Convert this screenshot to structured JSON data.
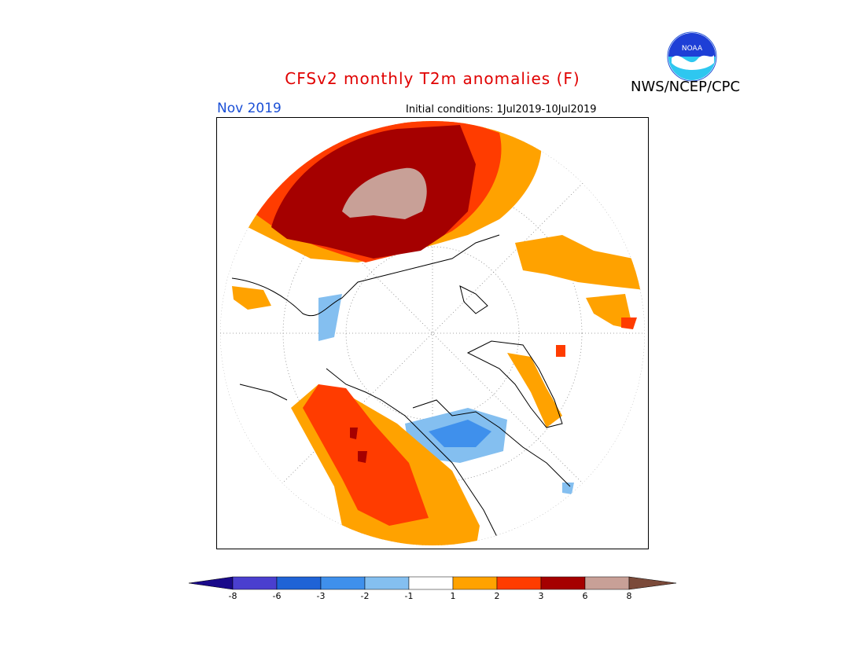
{
  "header": {
    "title": "CFSv2 monthly T2m anomalies (F)",
    "agency": "NWS/NCEP/CPC",
    "valid_month": "Nov 2019",
    "initial_conditions": "Initial conditions: 1Jul2019-10Jul2019",
    "logo_text": "NOAA"
  },
  "colorbar": {
    "tick_labels": [
      "-8",
      "-6",
      "-3",
      "-2",
      "-1",
      "1",
      "2",
      "3",
      "6",
      "8"
    ],
    "colors": [
      "#1a0a8a",
      "#4a3fcf",
      "#1f63d6",
      "#3f90ec",
      "#84bff0",
      "#ffffff",
      "#ffa200",
      "#ff3c00",
      "#a50000",
      "#c8a097",
      "#7b4a3a"
    ]
  },
  "map": {
    "projection": "north-polar-stereographic",
    "graticule": "dotted"
  }
}
